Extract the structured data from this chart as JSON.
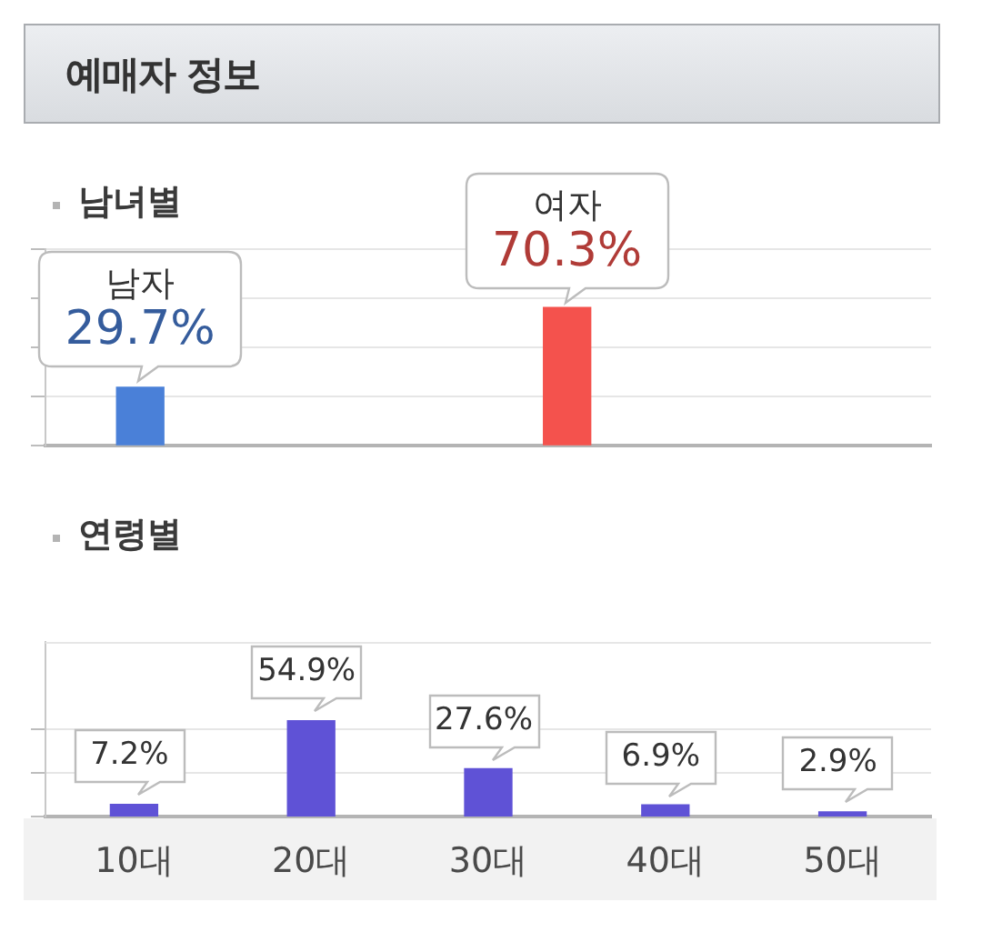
{
  "chart_data": [
    {
      "type": "bar",
      "title": "예매자 정보",
      "subtitle": "남녀별",
      "categories": [
        "남자",
        "여자"
      ],
      "values": [
        29.7,
        70.3
      ],
      "colors": [
        "#4a80d8",
        "#f4524d"
      ],
      "value_labels": [
        "29.7%",
        "70.3%"
      ],
      "ylim": [
        0,
        100
      ],
      "yticks": [
        {
          "value": 0,
          "label": null
        },
        {
          "value": 25,
          "label": null
        },
        {
          "value": 50,
          "label": null
        },
        {
          "value": 75,
          "label": null
        },
        {
          "value": 100,
          "label": null
        }
      ],
      "grid": "y",
      "tick_labels": false
    },
    {
      "type": "bar",
      "title": "연령별",
      "categories": [
        "10대",
        "20대",
        "30대",
        "40대",
        "50대"
      ],
      "values": [
        7.2,
        54.9,
        27.6,
        6.9,
        2.9
      ],
      "color": "#5f52d6",
      "value_labels": [
        "7.2%",
        "54.9%",
        "27.6%",
        "6.9%",
        "2.9%"
      ],
      "ylim": [
        0,
        100
      ],
      "yticks": [
        {
          "value": 0,
          "label": null
        },
        {
          "value": 25,
          "label": null
        },
        {
          "value": 50,
          "label": null
        }
      ],
      "grid": "y",
      "tick_labels": "x"
    }
  ]
}
